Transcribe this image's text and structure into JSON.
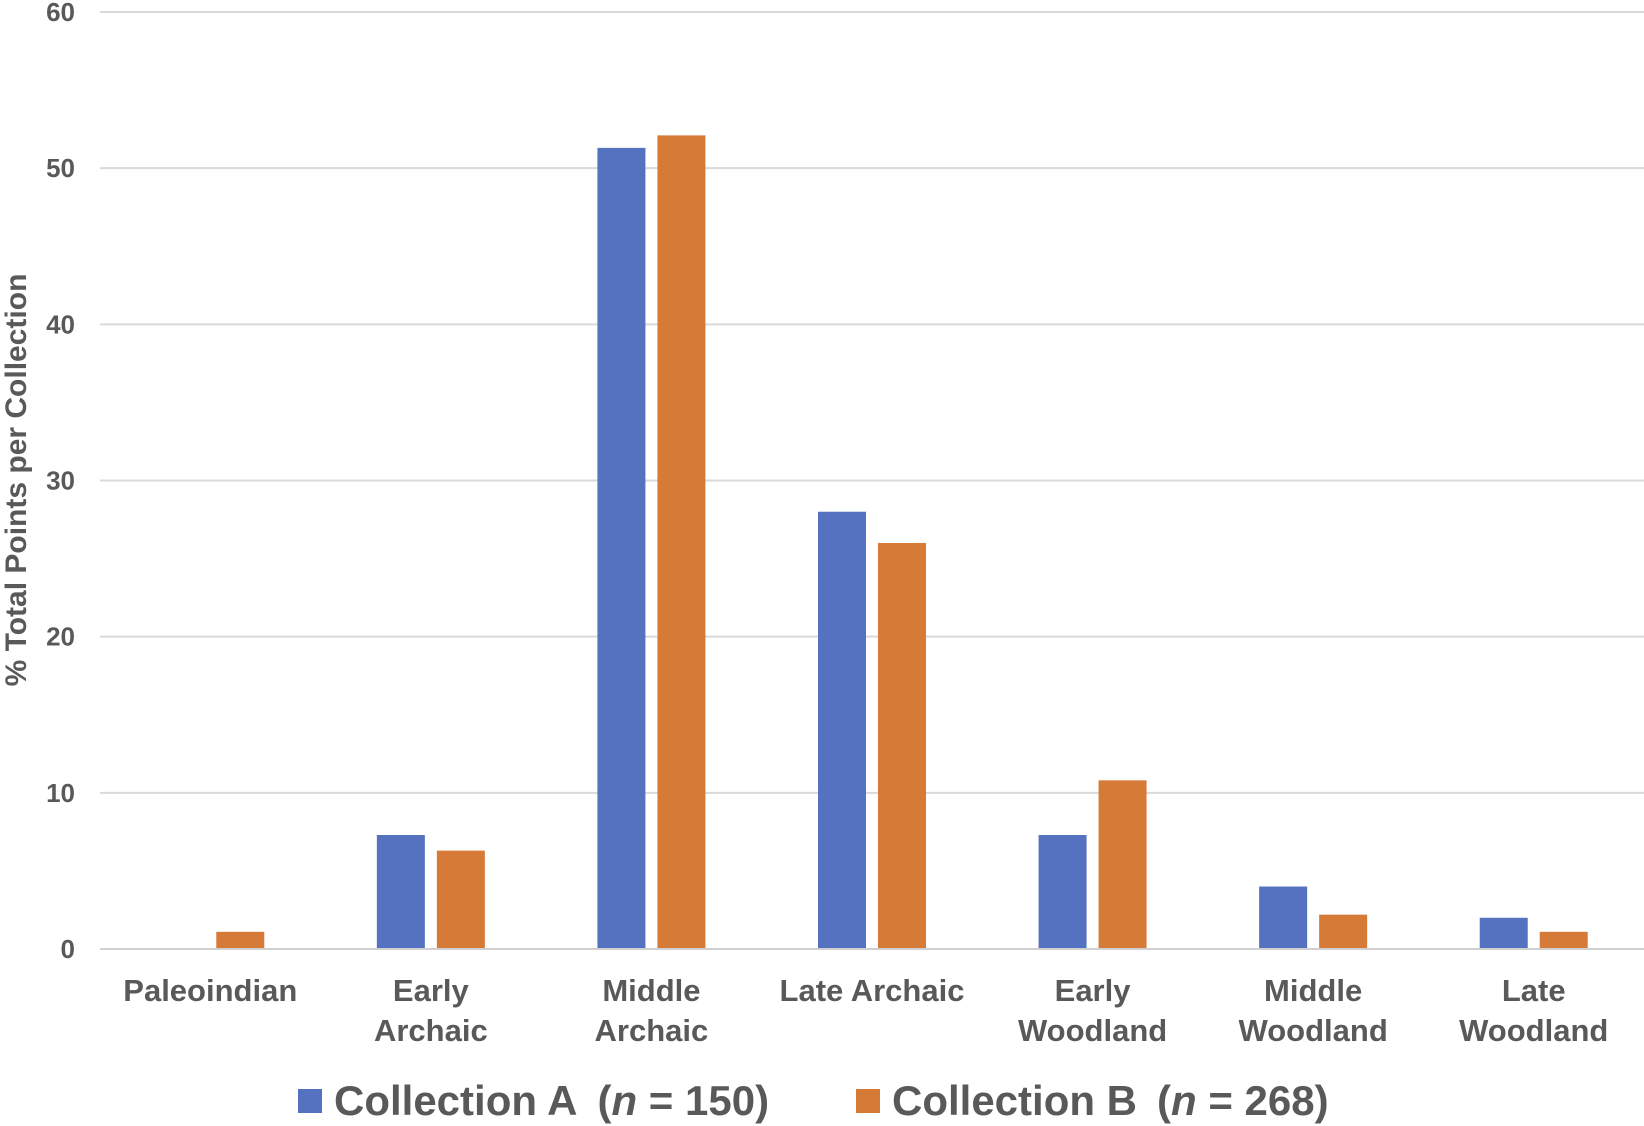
{
  "chart_data": {
    "type": "bar",
    "title": "",
    "xlabel": "",
    "ylabel": "% Total Points per Collection",
    "ylim": [
      0,
      60
    ],
    "yticks": [
      0,
      10,
      20,
      30,
      40,
      50,
      60
    ],
    "grid": true,
    "legend_position": "bottom",
    "categories": [
      [
        "Paleoindian"
      ],
      [
        "Early",
        "Archaic"
      ],
      [
        "Middle",
        "Archaic"
      ],
      [
        "Late Archaic"
      ],
      [
        "Early",
        "Woodland"
      ],
      [
        "Middle",
        "Woodland"
      ],
      [
        "Late",
        "Woodland"
      ]
    ],
    "series": [
      {
        "name": "Collection A",
        "n_label": "n",
        "n_value": "= 150",
        "color": "#5572C0",
        "values": [
          0,
          7.3,
          51.3,
          28,
          7.3,
          4,
          2
        ]
      },
      {
        "name": "Collection B",
        "n_label": "n",
        "n_value": "= 268",
        "color": "#D67A38",
        "values": [
          1.1,
          6.3,
          52.1,
          26,
          10.8,
          2.2,
          1.1
        ]
      }
    ]
  }
}
